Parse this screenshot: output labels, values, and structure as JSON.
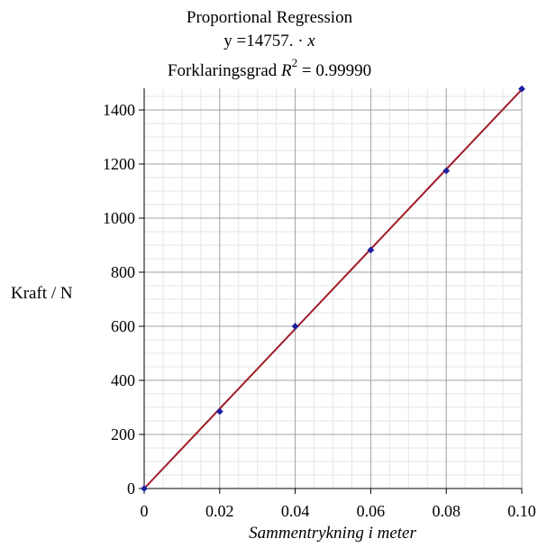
{
  "chart_data": {
    "type": "scatter",
    "title_lines": {
      "line1": "Proportional Regression",
      "equation_prefix": "y =14757. · ",
      "equation_var": "x",
      "r2_prefix": "Forklaringsgrad ",
      "r2_symbol": "R",
      "r2_exp": "2",
      "r2_suffix": " = 0.99990"
    },
    "xlabel": "Sammentrykning i meter",
    "ylabel": "Kraft / N",
    "xlim": [
      0,
      0.1
    ],
    "ylim": [
      0,
      1480
    ],
    "x_ticks": [
      0,
      0.02,
      0.04,
      0.06,
      0.08,
      0.1
    ],
    "x_tick_labels": [
      "0",
      "0.02",
      "0.04",
      "0.06",
      "0.08",
      "0.10"
    ],
    "y_ticks": [
      0,
      200,
      400,
      600,
      800,
      1000,
      1200,
      1400
    ],
    "y_tick_labels": [
      "0",
      "200",
      "400",
      "600",
      "800",
      "1000",
      "1200",
      "1400"
    ],
    "grid": true,
    "series": [
      {
        "type": "scatter",
        "x": [
          0,
          0.02,
          0.04,
          0.06,
          0.08,
          0.1
        ],
        "y": [
          0,
          285,
          600,
          882,
          1175,
          1478
        ],
        "color": "#1f1fa0"
      },
      {
        "type": "line",
        "slope": 14757,
        "x": [
          0,
          0.1
        ],
        "color": "#a01c2a"
      }
    ],
    "colors": {
      "grid_major": "#a0a0a0",
      "grid_minor": "#e6e6e6",
      "axis": "#000000",
      "marker": "#1f1fa0",
      "regression": "#a01c2a"
    }
  }
}
